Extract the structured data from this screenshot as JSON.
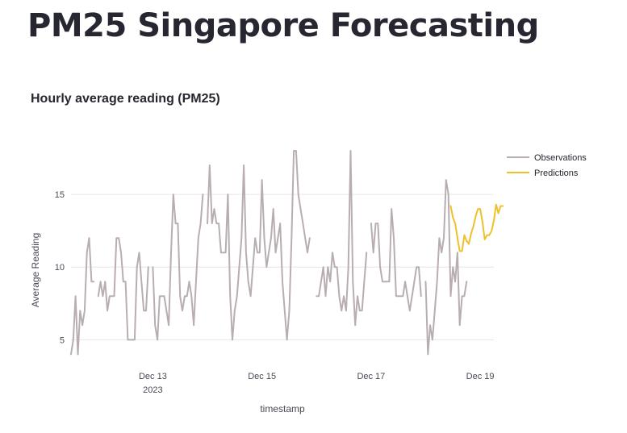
{
  "page": {
    "title": "PM25 Singapore Forecasting"
  },
  "chart_data": {
    "type": "line",
    "title": "Hourly average reading (PM25)",
    "xlabel": "timestamp",
    "ylabel": "Average Reading",
    "x_ticks": [
      {
        "date": "2023-12-13",
        "label": "Dec 13",
        "sublabel": "2023"
      },
      {
        "date": "2023-12-15",
        "label": "Dec 15",
        "sublabel": ""
      },
      {
        "date": "2023-12-17",
        "label": "Dec 17",
        "sublabel": ""
      },
      {
        "date": "2023-12-19",
        "label": "Dec 19",
        "sublabel": ""
      }
    ],
    "x_range": [
      "2023-12-11T12:00",
      "2023-12-19T06:00"
    ],
    "y_ticks": [
      5,
      10,
      15
    ],
    "ylim": [
      3.3,
      18.5
    ],
    "grid": true,
    "legend_position": "right",
    "series": [
      {
        "name": "Observations",
        "color": "#b8aeb0",
        "points": [
          [
            "2023-12-11T12:00",
            4
          ],
          [
            "2023-12-11T13:00",
            5
          ],
          [
            "2023-12-11T14:00",
            8
          ],
          [
            "2023-12-11T15:00",
            4
          ],
          [
            "2023-12-11T16:00",
            7
          ],
          [
            "2023-12-11T17:00",
            6
          ],
          [
            "2023-12-11T18:00",
            7
          ],
          [
            "2023-12-11T19:00",
            11
          ],
          [
            "2023-12-11T20:00",
            12
          ],
          [
            "2023-12-11T21:00",
            9
          ],
          [
            "2023-12-11T22:00",
            9
          ],
          [
            "2023-12-11T23:00",
            null
          ],
          [
            "2023-12-12T00:00",
            8
          ],
          [
            "2023-12-12T01:00",
            9
          ],
          [
            "2023-12-12T02:00",
            8
          ],
          [
            "2023-12-12T03:00",
            9
          ],
          [
            "2023-12-12T04:00",
            7
          ],
          [
            "2023-12-12T05:00",
            8
          ],
          [
            "2023-12-12T06:00",
            8
          ],
          [
            "2023-12-12T07:00",
            8
          ],
          [
            "2023-12-12T08:00",
            12
          ],
          [
            "2023-12-12T09:00",
            12
          ],
          [
            "2023-12-12T10:00",
            11
          ],
          [
            "2023-12-12T11:00",
            9
          ],
          [
            "2023-12-12T12:00",
            9
          ],
          [
            "2023-12-12T13:00",
            5
          ],
          [
            "2023-12-12T14:00",
            5
          ],
          [
            "2023-12-12T15:00",
            5
          ],
          [
            "2023-12-12T16:00",
            5
          ],
          [
            "2023-12-12T17:00",
            10
          ],
          [
            "2023-12-12T18:00",
            11
          ],
          [
            "2023-12-12T19:00",
            9
          ],
          [
            "2023-12-12T20:00",
            7
          ],
          [
            "2023-12-12T21:00",
            7
          ],
          [
            "2023-12-12T22:00",
            10
          ],
          [
            "2023-12-12T23:00",
            null
          ],
          [
            "2023-12-13T00:00",
            10
          ],
          [
            "2023-12-13T01:00",
            6
          ],
          [
            "2023-12-13T02:00",
            5
          ],
          [
            "2023-12-13T03:00",
            8
          ],
          [
            "2023-12-13T04:00",
            8
          ],
          [
            "2023-12-13T05:00",
            8
          ],
          [
            "2023-12-13T06:00",
            7
          ],
          [
            "2023-12-13T07:00",
            6
          ],
          [
            "2023-12-13T08:00",
            11
          ],
          [
            "2023-12-13T09:00",
            15
          ],
          [
            "2023-12-13T10:00",
            13
          ],
          [
            "2023-12-13T11:00",
            13
          ],
          [
            "2023-12-13T12:00",
            8
          ],
          [
            "2023-12-13T13:00",
            7
          ],
          [
            "2023-12-13T14:00",
            8
          ],
          [
            "2023-12-13T15:00",
            8
          ],
          [
            "2023-12-13T16:00",
            9
          ],
          [
            "2023-12-13T17:00",
            8
          ],
          [
            "2023-12-13T18:00",
            6
          ],
          [
            "2023-12-13T19:00",
            9
          ],
          [
            "2023-12-13T20:00",
            12
          ],
          [
            "2023-12-13T21:00",
            13
          ],
          [
            "2023-12-13T22:00",
            15
          ],
          [
            "2023-12-13T23:00",
            null
          ],
          [
            "2023-12-14T00:00",
            13
          ],
          [
            "2023-12-14T01:00",
            17
          ],
          [
            "2023-12-14T02:00",
            13
          ],
          [
            "2023-12-14T03:00",
            14
          ],
          [
            "2023-12-14T04:00",
            13
          ],
          [
            "2023-12-14T05:00",
            13
          ],
          [
            "2023-12-14T06:00",
            11
          ],
          [
            "2023-12-14T07:00",
            11
          ],
          [
            "2023-12-14T08:00",
            11
          ],
          [
            "2023-12-14T09:00",
            15
          ],
          [
            "2023-12-14T10:00",
            8
          ],
          [
            "2023-12-14T11:00",
            5
          ],
          [
            "2023-12-14T12:00",
            7
          ],
          [
            "2023-12-14T13:00",
            8
          ],
          [
            "2023-12-14T14:00",
            10
          ],
          [
            "2023-12-14T15:00",
            12
          ],
          [
            "2023-12-14T16:00",
            17
          ],
          [
            "2023-12-14T17:00",
            11
          ],
          [
            "2023-12-14T18:00",
            9
          ],
          [
            "2023-12-14T19:00",
            8
          ],
          [
            "2023-12-14T20:00",
            10
          ],
          [
            "2023-12-14T21:00",
            12
          ],
          [
            "2023-12-14T22:00",
            11
          ],
          [
            "2023-12-14T23:00",
            11
          ],
          [
            "2023-12-15T00:00",
            16
          ],
          [
            "2023-12-15T01:00",
            12
          ],
          [
            "2023-12-15T02:00",
            10
          ],
          [
            "2023-12-15T03:00",
            11
          ],
          [
            "2023-12-15T04:00",
            12
          ],
          [
            "2023-12-15T05:00",
            14
          ],
          [
            "2023-12-15T06:00",
            11
          ],
          [
            "2023-12-15T07:00",
            12
          ],
          [
            "2023-12-15T08:00",
            13
          ],
          [
            "2023-12-15T09:00",
            9
          ],
          [
            "2023-12-15T10:00",
            7
          ],
          [
            "2023-12-15T11:00",
            5
          ],
          [
            "2023-12-15T12:00",
            7
          ],
          [
            "2023-12-15T13:00",
            12
          ],
          [
            "2023-12-15T14:00",
            18
          ],
          [
            "2023-12-15T15:00",
            18
          ],
          [
            "2023-12-15T16:00",
            15
          ],
          [
            "2023-12-15T17:00",
            14
          ],
          [
            "2023-12-15T18:00",
            13
          ],
          [
            "2023-12-15T19:00",
            12
          ],
          [
            "2023-12-15T20:00",
            11
          ],
          [
            "2023-12-15T21:00",
            12
          ],
          [
            "2023-12-15T22:00",
            null
          ],
          [
            "2023-12-15T23:00",
            null
          ],
          [
            "2023-12-16T00:00",
            8
          ],
          [
            "2023-12-16T01:00",
            8
          ],
          [
            "2023-12-16T02:00",
            9
          ],
          [
            "2023-12-16T03:00",
            10
          ],
          [
            "2023-12-16T04:00",
            8
          ],
          [
            "2023-12-16T05:00",
            10
          ],
          [
            "2023-12-16T06:00",
            9
          ],
          [
            "2023-12-16T07:00",
            11
          ],
          [
            "2023-12-16T08:00",
            10
          ],
          [
            "2023-12-16T09:00",
            10
          ],
          [
            "2023-12-16T10:00",
            8
          ],
          [
            "2023-12-16T11:00",
            7
          ],
          [
            "2023-12-16T12:00",
            8
          ],
          [
            "2023-12-16T13:00",
            7
          ],
          [
            "2023-12-16T14:00",
            10
          ],
          [
            "2023-12-16T15:00",
            18
          ],
          [
            "2023-12-16T16:00",
            9
          ],
          [
            "2023-12-16T17:00",
            6
          ],
          [
            "2023-12-16T18:00",
            8
          ],
          [
            "2023-12-16T19:00",
            7
          ],
          [
            "2023-12-16T20:00",
            7
          ],
          [
            "2023-12-16T21:00",
            9
          ],
          [
            "2023-12-16T22:00",
            11
          ],
          [
            "2023-12-16T23:00",
            null
          ],
          [
            "2023-12-17T00:00",
            13
          ],
          [
            "2023-12-17T01:00",
            11
          ],
          [
            "2023-12-17T02:00",
            13
          ],
          [
            "2023-12-17T03:00",
            13
          ],
          [
            "2023-12-17T04:00",
            10
          ],
          [
            "2023-12-17T05:00",
            9
          ],
          [
            "2023-12-17T06:00",
            9
          ],
          [
            "2023-12-17T07:00",
            9
          ],
          [
            "2023-12-17T08:00",
            9
          ],
          [
            "2023-12-17T09:00",
            14
          ],
          [
            "2023-12-17T10:00",
            12
          ],
          [
            "2023-12-17T11:00",
            8
          ],
          [
            "2023-12-17T12:00",
            8
          ],
          [
            "2023-12-17T13:00",
            8
          ],
          [
            "2023-12-17T14:00",
            8
          ],
          [
            "2023-12-17T15:00",
            9
          ],
          [
            "2023-12-17T16:00",
            8
          ],
          [
            "2023-12-17T17:00",
            7
          ],
          [
            "2023-12-17T18:00",
            8
          ],
          [
            "2023-12-17T19:00",
            9
          ],
          [
            "2023-12-17T20:00",
            10
          ],
          [
            "2023-12-17T21:00",
            10
          ],
          [
            "2023-12-17T22:00",
            8
          ],
          [
            "2023-12-17T23:00",
            null
          ],
          [
            "2023-12-18T00:00",
            9
          ],
          [
            "2023-12-18T01:00",
            4
          ],
          [
            "2023-12-18T02:00",
            6
          ],
          [
            "2023-12-18T03:00",
            5
          ],
          [
            "2023-12-18T04:00",
            7
          ],
          [
            "2023-12-18T05:00",
            9
          ],
          [
            "2023-12-18T06:00",
            12
          ],
          [
            "2023-12-18T07:00",
            11
          ],
          [
            "2023-12-18T08:00",
            12
          ],
          [
            "2023-12-18T09:00",
            16
          ],
          [
            "2023-12-18T10:00",
            15
          ],
          [
            "2023-12-18T11:00",
            8
          ],
          [
            "2023-12-18T12:00",
            10
          ],
          [
            "2023-12-18T13:00",
            9
          ],
          [
            "2023-12-18T14:00",
            11
          ],
          [
            "2023-12-18T15:00",
            6
          ],
          [
            "2023-12-18T16:00",
            8
          ],
          [
            "2023-12-18T17:00",
            8
          ],
          [
            "2023-12-18T18:00",
            9
          ]
        ]
      },
      {
        "name": "Predictions",
        "color": "#f0c02c",
        "points": [
          [
            "2023-12-18T11:00",
            14.2
          ],
          [
            "2023-12-18T12:00",
            13.4
          ],
          [
            "2023-12-18T13:00",
            13.0
          ],
          [
            "2023-12-18T14:00",
            12.0
          ],
          [
            "2023-12-18T15:00",
            11.1
          ],
          [
            "2023-12-18T16:00",
            11.1
          ],
          [
            "2023-12-18T17:00",
            12.2
          ],
          [
            "2023-12-18T18:00",
            11.8
          ],
          [
            "2023-12-18T19:00",
            11.6
          ],
          [
            "2023-12-18T20:00",
            12.3
          ],
          [
            "2023-12-18T21:00",
            12.8
          ],
          [
            "2023-12-18T22:00",
            13.5
          ],
          [
            "2023-12-18T23:00",
            14.0
          ],
          [
            "2023-12-19T00:00",
            14.0
          ],
          [
            "2023-12-19T01:00",
            13.1
          ],
          [
            "2023-12-19T02:00",
            11.9
          ],
          [
            "2023-12-19T03:00",
            12.2
          ],
          [
            "2023-12-19T04:00",
            12.2
          ],
          [
            "2023-12-19T05:00",
            12.5
          ],
          [
            "2023-12-19T06:00",
            13.2
          ],
          [
            "2023-12-19T07:00",
            14.3
          ],
          [
            "2023-12-19T08:00",
            13.7
          ],
          [
            "2023-12-19T09:00",
            14.2
          ],
          [
            "2023-12-19T10:00",
            14.2
          ]
        ]
      }
    ]
  }
}
